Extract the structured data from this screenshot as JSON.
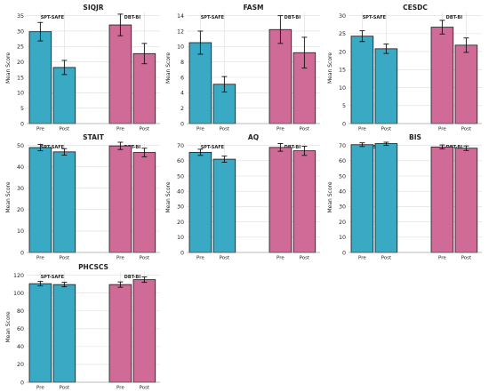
{
  "chart_data": [
    {
      "type": "bar",
      "title": "SIQJR",
      "ylabel": "Mean Score",
      "categories": [
        "Pre",
        "Post",
        "Pre",
        "Post"
      ],
      "groups": [
        "SPT-SAFE",
        "DBT-BI"
      ],
      "values": [
        29.8,
        18.2,
        32.0,
        22.7
      ],
      "errors": [
        3.0,
        2.3,
        3.5,
        3.3
      ],
      "ylim": [
        0,
        35
      ],
      "yticks": [
        0,
        5,
        10,
        15,
        20,
        25,
        30,
        35
      ],
      "grid": true
    },
    {
      "type": "bar",
      "title": "FASM",
      "ylabel": "Mean Score",
      "categories": [
        "Pre",
        "Post",
        "Pre",
        "Post"
      ],
      "groups": [
        "SPT-SAFE",
        "DBT-BI"
      ],
      "values": [
        10.5,
        5.1,
        12.2,
        9.2
      ],
      "errors": [
        1.5,
        1.0,
        1.8,
        2.0
      ],
      "ylim": [
        0,
        14
      ],
      "yticks": [
        0,
        2,
        4,
        6,
        8,
        10,
        12,
        14
      ],
      "grid": true
    },
    {
      "type": "bar",
      "title": "CESDC",
      "ylabel": "Mean Score",
      "categories": [
        "Pre",
        "Post",
        "Pre",
        "Post"
      ],
      "groups": [
        "SPT-SAFE",
        "DBT-BI"
      ],
      "values": [
        24.3,
        20.8,
        26.8,
        21.8
      ],
      "errors": [
        1.5,
        1.3,
        1.9,
        2.0
      ],
      "ylim": [
        0,
        30
      ],
      "yticks": [
        0,
        5,
        10,
        15,
        20,
        25,
        30
      ],
      "grid": true
    },
    {
      "type": "bar",
      "title": "STAIT",
      "ylabel": "Mean Score",
      "categories": [
        "Pre",
        "Post",
        "Pre",
        "Post"
      ],
      "groups": [
        "SPT-SAFE",
        "DBT-BI"
      ],
      "values": [
        49.0,
        47.0,
        49.8,
        46.7
      ],
      "errors": [
        1.5,
        1.5,
        1.7,
        2.0
      ],
      "ylim": [
        0,
        50
      ],
      "yticks": [
        0,
        10,
        20,
        30,
        40,
        50
      ],
      "grid": true
    },
    {
      "type": "bar",
      "title": "AQ",
      "ylabel": "Mean Score",
      "categories": [
        "Pre",
        "Post",
        "Pre",
        "Post"
      ],
      "groups": [
        "SPT-SAFE",
        "DBT-BI"
      ],
      "values": [
        65.5,
        61.0,
        68.7,
        66.5
      ],
      "errors": [
        2.0,
        2.0,
        2.5,
        3.0
      ],
      "ylim": [
        0,
        70
      ],
      "yticks": [
        0,
        10,
        20,
        30,
        40,
        50,
        60,
        70
      ],
      "grid": true
    },
    {
      "type": "bar",
      "title": "BIS",
      "ylabel": "Mean Score",
      "categories": [
        "Pre",
        "Post",
        "Pre",
        "Post"
      ],
      "groups": [
        "SPT-SAFE",
        "DBT-BI"
      ],
      "values": [
        70.5,
        71.2,
        69.0,
        68.2
      ],
      "errors": [
        1.2,
        1.2,
        1.3,
        1.5
      ],
      "ylim": [
        0,
        70
      ],
      "yticks": [
        0,
        10,
        20,
        30,
        40,
        50,
        60,
        70
      ],
      "grid": true
    },
    {
      "type": "bar",
      "title": "PHCSCS",
      "ylabel": "Mean Score",
      "categories": [
        "Pre",
        "Post",
        "Pre",
        "Post"
      ],
      "groups": [
        "SPT-SAFE",
        "DBT-BI"
      ],
      "values": [
        110.5,
        109.5,
        109.5,
        115.0
      ],
      "errors": [
        2.5,
        2.5,
        3.0,
        3.0
      ],
      "ylim": [
        0,
        120
      ],
      "yticks": [
        0,
        20,
        40,
        60,
        80,
        100,
        120
      ],
      "grid": true
    }
  ],
  "colors": {
    "SPT-SAFE": "#3aa9c4",
    "DBT-BI": "#d06b97",
    "grid": "#dddddd",
    "bar_edge": "#1a1a1a"
  }
}
